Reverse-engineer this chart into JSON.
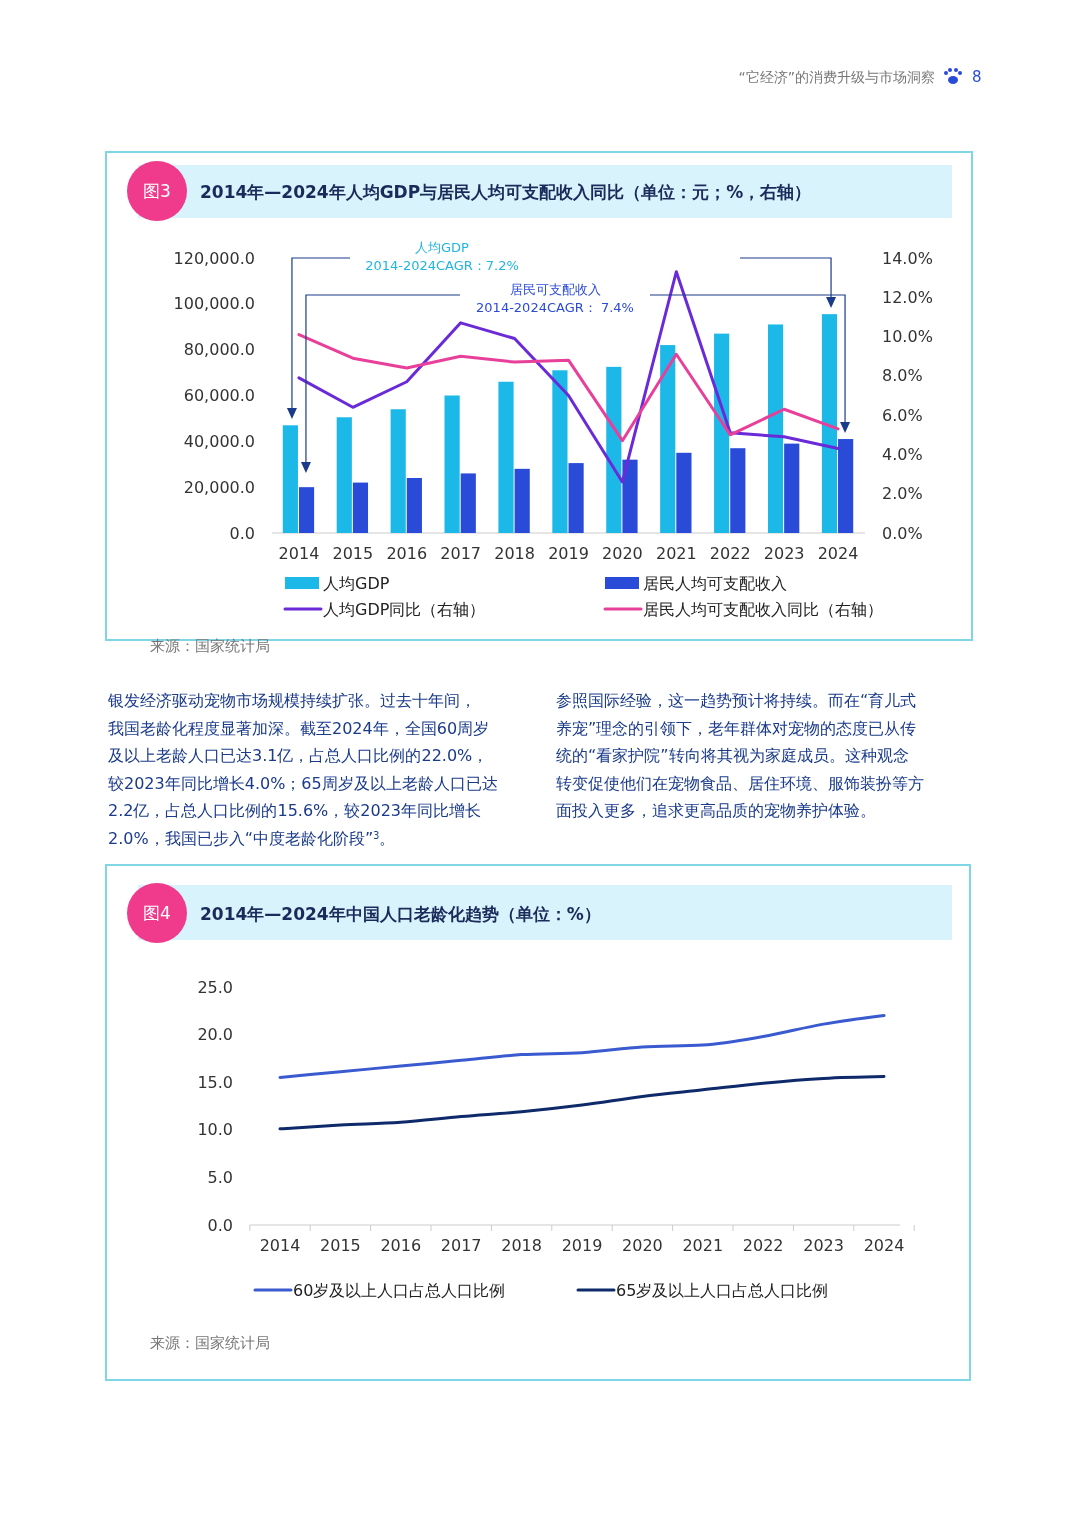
{
  "chart_data": [
    {
      "type": "bar",
      "title": "2014年—2024年人均GDP与居民人均可支配收入同比（单位：元；%，右轴）",
      "categories": [
        "2014",
        "2015",
        "2016",
        "2017",
        "2018",
        "2019",
        "2020",
        "2021",
        "2022",
        "2023",
        "2024"
      ],
      "series": [
        {
          "name": "人均GDP",
          "color": "#1cb8e8",
          "values": [
            47000,
            50500,
            54000,
            60000,
            66000,
            71000,
            72500,
            82000,
            87000,
            91000,
            95500
          ]
        },
        {
          "name": "居民人均可支配收入",
          "color": "#2a4ad8",
          "values": [
            20000,
            22000,
            24000,
            26000,
            28000,
            30500,
            32000,
            35000,
            37000,
            39000,
            41000
          ]
        },
        {
          "name": "人均GDP同比（右轴）",
          "type": "line",
          "axis": "y2",
          "color": "#6a2ad8",
          "values": [
            7.9,
            6.4,
            7.7,
            10.7,
            9.9,
            7.0,
            2.6,
            13.3,
            5.1,
            4.9,
            4.3
          ]
        },
        {
          "name": "居民人均可支配收入同比（右轴）",
          "type": "line",
          "axis": "y2",
          "color": "#e8409a",
          "values": [
            10.1,
            8.9,
            8.4,
            9.0,
            8.7,
            8.8,
            4.7,
            9.1,
            5.0,
            6.3,
            5.3
          ]
        }
      ],
      "ylim": [
        0,
        120000
      ],
      "yticks": [
        {
          "value": 0,
          "label": "0.0"
        },
        {
          "value": 20000,
          "label": "20,000.0"
        },
        {
          "value": 40000,
          "label": "40,000.0"
        },
        {
          "value": 60000,
          "label": "60,000.0"
        },
        {
          "value": 80000,
          "label": "80,000.0"
        },
        {
          "value": 100000,
          "label": "100,000.0"
        },
        {
          "value": 120000,
          "label": "120,000.0"
        }
      ],
      "y2lim": [
        0,
        14
      ],
      "y2ticks": [
        {
          "value": 0,
          "label": "0.0%"
        },
        {
          "value": 2,
          "label": "2.0%"
        },
        {
          "value": 4,
          "label": "4.0%"
        },
        {
          "value": 6,
          "label": "6.0%"
        },
        {
          "value": 8,
          "label": "8.0%"
        },
        {
          "value": 10,
          "label": "10.0%"
        },
        {
          "value": 12,
          "label": "12.0%"
        },
        {
          "value": 14,
          "label": "14.0%"
        }
      ],
      "legend": "bottom",
      "annotations": [
        "“它经济”的消费升级与市场洞察",
        "8",
        "图3",
        "人均GDP",
        "2014-2024CAGR：7.2%",
        "居民可支配收入",
        "2014-2024CAGR： 7.4%",
        "来源：国家统计局",
        "银发经济驱动宠物市场规模持续扩张。过去十年间，",
        "我国老龄化程度显著加深。截至2024年，全国60周岁",
        "及以上老龄人口已达3.1亿，占总人口比例的22.0%，",
        "较2023年同比增长4.0%；65周岁及以上老龄人口已达",
        "2.2亿，占总人口比例的15.6%，较2023年同比增长",
        "2.0%，我国已步入“中度老龄化阶段”$^{3}$。",
        "参照国际经验，这一趋势预计将持续。而在“育儿式",
        "养宠”理念的引领下，老年群体对宠物的态度已从传",
        "统的“看家护院”转向将其视为家庭成员。这种观念",
        "转变促使他们在宠物食品、居住环境、服饰装扮等方",
        "面投入更多，追求更高品质的宠物养护体验。"
      ]
    },
    {
      "type": "line",
      "title": "2014年—2024年中国人口老龄化趋势（单位：%）",
      "categories": [
        "2014",
        "2015",
        "2016",
        "2017",
        "2018",
        "2019",
        "2020",
        "2021",
        "2022",
        "2023",
        "2024"
      ],
      "series": [
        {
          "name": "60岁及以上人口占总人口比例",
          "color": "#3a5ad0",
          "values": [
            15.5,
            16.1,
            16.7,
            17.3,
            17.9,
            18.1,
            18.7,
            18.9,
            19.8,
            21.1,
            22.0
          ]
        },
        {
          "name": "65岁及以上人口占总人口比例",
          "color": "#0e2a6a",
          "values": [
            10.1,
            10.5,
            10.8,
            11.4,
            11.9,
            12.6,
            13.5,
            14.2,
            14.9,
            15.4,
            15.6
          ]
        }
      ],
      "ylim": [
        0,
        25
      ],
      "yticks": [
        {
          "value": 0,
          "label": "0.0"
        },
        {
          "value": 5,
          "label": "5.0"
        },
        {
          "value": 10,
          "label": "10.0"
        },
        {
          "value": 15,
          "label": "15.0"
        },
        {
          "value": 20,
          "label": "20.0"
        },
        {
          "value": 25,
          "label": "25.0"
        }
      ],
      "legend": "bottom",
      "annotations": [
        "图4",
        "来源：国家统计局"
      ]
    }
  ]
}
